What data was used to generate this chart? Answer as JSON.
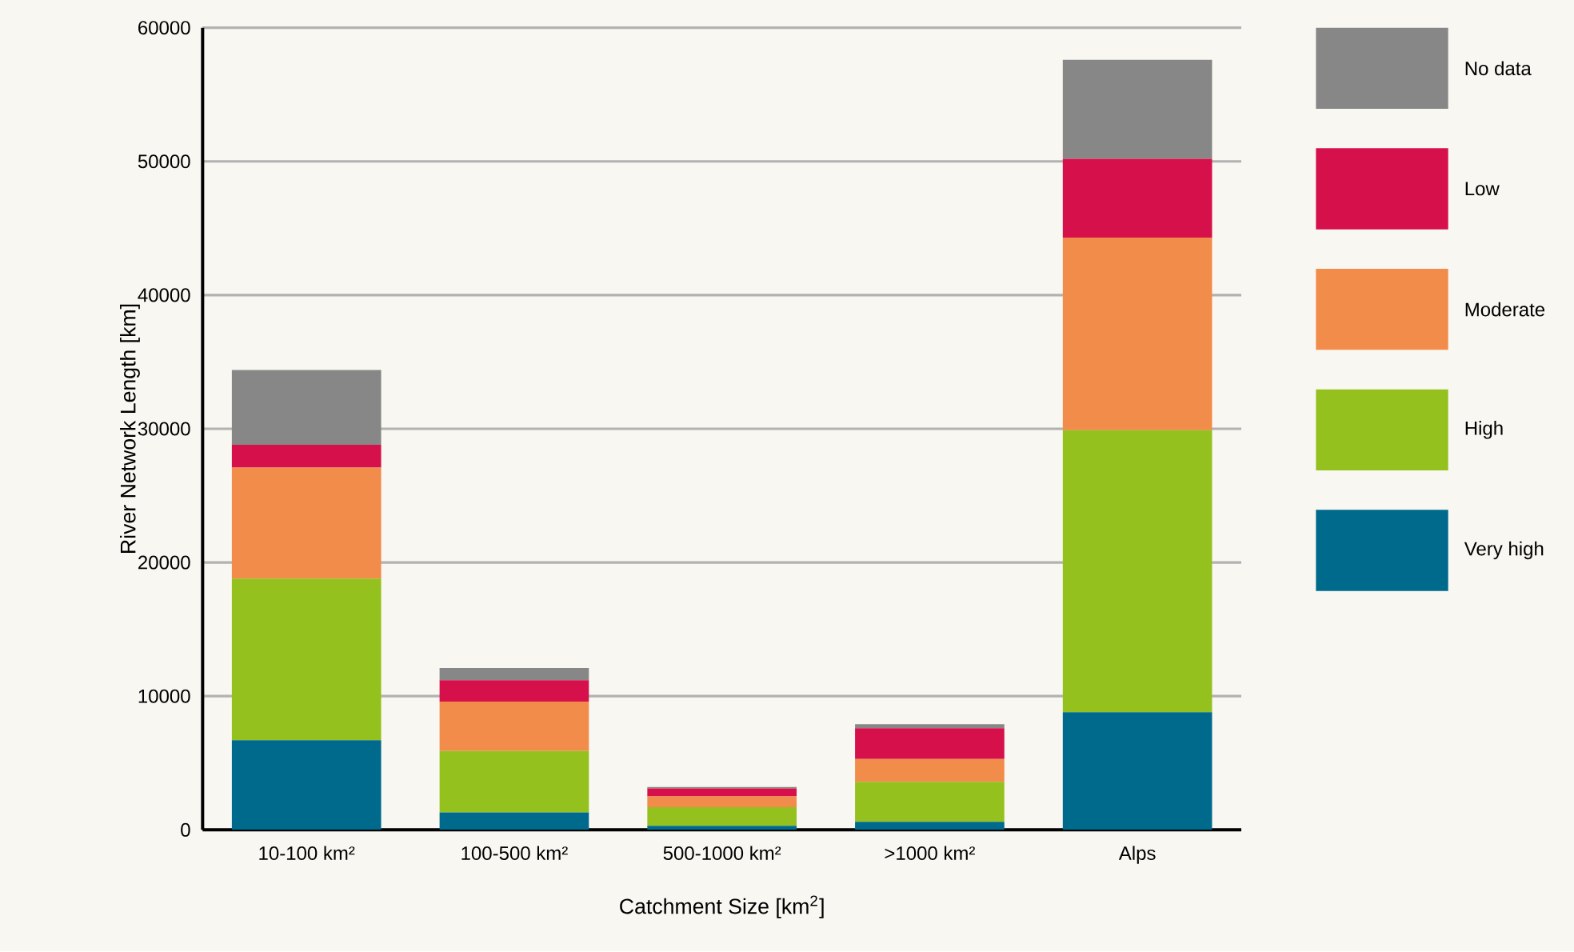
{
  "chart_data": {
    "type": "bar",
    "stacked": true,
    "xlabel": "Catchment Size [km$^{2}$]",
    "ylabel": "River Network Length [km]",
    "categories": [
      "10-100 km²",
      "100-500 km²",
      "500-1000 km²",
      ">1000 km²",
      "Alps"
    ],
    "series": [
      {
        "name": "Very high",
        "color": "#006a8c",
        "values": [
          6700,
          1300,
          300,
          600,
          8800
        ]
      },
      {
        "name": "High",
        "color": "#95c11f",
        "values": [
          12100,
          4600,
          1400,
          3000,
          21100
        ]
      },
      {
        "name": "Moderate",
        "color": "#f28c4a",
        "values": [
          8300,
          3700,
          800,
          1700,
          14400
        ]
      },
      {
        "name": "Low",
        "color": "#d6104b",
        "values": [
          1700,
          1600,
          600,
          2300,
          5900
        ]
      },
      {
        "name": "No data",
        "color": "#878787",
        "values": [
          5600,
          900,
          100,
          300,
          7400
        ]
      }
    ],
    "ylim": [
      0,
      60000
    ],
    "yticks": [
      0,
      10000,
      20000,
      30000,
      40000,
      50000,
      60000
    ],
    "grid": "y",
    "legend": "right"
  }
}
